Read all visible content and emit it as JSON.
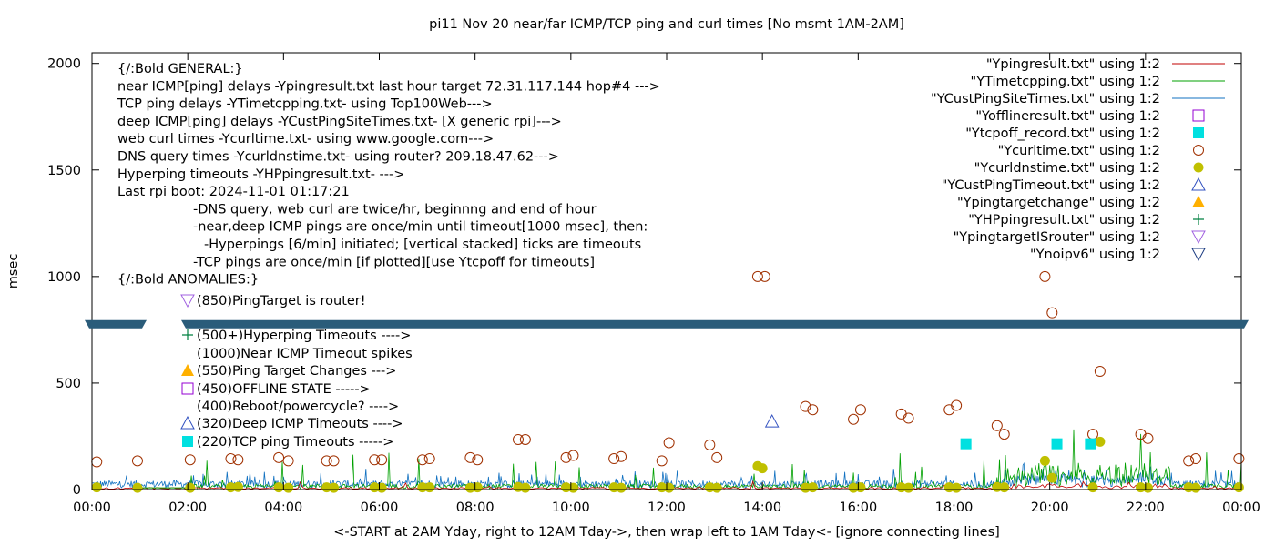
{
  "chart_data": {
    "type": "scatter",
    "title": "pi11 Nov 20  near/far ICMP/TCP ping and curl times [No msmt 1AM-2AM]",
    "xlabel": "<-START at 2AM Yday, right to 12AM Tday->, then wrap left to 1AM Tday<- [ignore connecting lines]",
    "ylabel": "msec",
    "xlim": [
      0,
      24
    ],
    "ylim": [
      0,
      2050
    ],
    "y_axis_break": [
      770,
      790
    ],
    "x_ticks": [
      "00:00",
      "02:00",
      "04:00",
      "06:00",
      "08:00",
      "10:00",
      "12:00",
      "14:00",
      "16:00",
      "18:00",
      "20:00",
      "22:00",
      "00:00"
    ],
    "y_ticks": [
      "0",
      "500",
      "1000",
      "1500",
      "2000"
    ],
    "grid": false,
    "legend_position": "top-right",
    "legend": [
      {
        "label": "\"Ypingresult.txt\" using 1:2",
        "symbol": "line",
        "color": "#c00000"
      },
      {
        "label": "\"YTimetcpping.txt\" using 1:2",
        "symbol": "line",
        "color": "#00a000"
      },
      {
        "label": "\"YCustPingSiteTimes.txt\" using 1:2",
        "symbol": "line",
        "color": "#1070c0"
      },
      {
        "label": "\"Yofflineresult.txt\" using 1:2",
        "symbol": "open-square",
        "color": "#9400d3"
      },
      {
        "label": "\"Ytcpoff_record.txt\" using 1:2",
        "symbol": "filled-square",
        "color": "#00e0e0"
      },
      {
        "label": "\"Ycurltime.txt\" using 1:2",
        "symbol": "open-circle",
        "color": "#a03000"
      },
      {
        "label": "\"Ycurldnstime.txt\" using 1:2",
        "symbol": "filled-circle",
        "color": "#c0c000"
      },
      {
        "label": "\"YCustPingTimeout.txt\" using 1:2",
        "symbol": "open-triangle-up",
        "color": "#3050c0"
      },
      {
        "label": "\"Ypingtargetchange\" using 1:2",
        "symbol": "filled-triangle-up",
        "color": "#ffb000"
      },
      {
        "label": "\"YHPpingresult.txt\" using 1:2",
        "symbol": "plus",
        "color": "#008040"
      },
      {
        "label": "\"YpingtargetISrouter\" using 1:2",
        "symbol": "open-triangle-down",
        "color": "#a060e0"
      },
      {
        "label": "\"Ynoipv6\" using 1:2",
        "symbol": "open-triangle-down",
        "color": "#1a3a80"
      }
    ],
    "annotations_top": [
      "{/:Bold GENERAL:}",
      "near ICMP[ping] delays -Ypingresult.txt last hour target 72.31.117.144 hop#4 --->",
      "TCP ping delays -YTimetcpping.txt- using Top100Web--->",
      "deep ICMP[ping] delays -YCustPingSiteTimes.txt- [X generic rpi]--->",
      "web curl times -Ycurltime.txt- using www.google.com--->",
      "DNS query times -Ycurldnstime.txt- using router? 209.18.47.62--->",
      "Hyperping timeouts -YHPpingresult.txt- --->",
      "Last rpi boot: 2024-11-01 01:17:21",
      "-DNS query, web curl are twice/hr, beginnng and end of hour",
      "-near,deep ICMP pings are once/min until timeout[1000 msec], then:",
      "-Hyperpings [6/min] initiated; [vertical stacked] ticks are timeouts",
      "-TCP pings are once/min [if plotted][use Ytcpoff for timeouts]",
      "{/:Bold ANOMALIES:}"
    ],
    "anomalies": [
      {
        "text": "(850)PingTarget is router!",
        "symbol": "open-triangle-down",
        "color": "#a060e0"
      },
      {
        "text": "(500+)Hyperping Timeouts ---->",
        "symbol": "plus",
        "color": "#008040"
      },
      {
        "text": "(1000)Near ICMP Timeout spikes",
        "symbol": "none",
        "color": ""
      },
      {
        "text": "(550)Ping Target Changes --->",
        "symbol": "filled-triangle-up",
        "color": "#ffb000"
      },
      {
        "text": "(450)OFFLINE STATE ----->",
        "symbol": "open-square",
        "color": "#9400d3"
      },
      {
        "text": "(400)Reboot/powercycle? ---->",
        "symbol": "none",
        "color": ""
      },
      {
        "text": "(320)Deep ICMP Timeouts ---->",
        "symbol": "open-triangle-up",
        "color": "#3050c0"
      },
      {
        "text": "(220)TCP ping Timeouts ----->",
        "symbol": "filled-square",
        "color": "#00e0e0"
      }
    ],
    "series": [
      {
        "name": "\"Ycurltime.txt\" using 1:2",
        "x": [
          0.1,
          0.95,
          2.05,
          2.9,
          3.05,
          3.9,
          4.1,
          4.9,
          5.05,
          5.9,
          6.05,
          6.9,
          7.05,
          7.9,
          8.05,
          8.9,
          9.05,
          9.9,
          10.05,
          10.9,
          11.05,
          11.9,
          12.05,
          12.9,
          13.05,
          13.9,
          14.05,
          14.9,
          15.05,
          15.9,
          16.05,
          16.9,
          17.05,
          17.9,
          18.05,
          18.9,
          19.05,
          19.9,
          20.05,
          20.9,
          21.05,
          21.9,
          22.05,
          22.9,
          23.05,
          23.95
        ],
        "y": [
          130,
          135,
          140,
          145,
          140,
          150,
          135,
          135,
          135,
          140,
          140,
          140,
          145,
          150,
          140,
          235,
          235,
          150,
          160,
          145,
          155,
          135,
          220,
          210,
          150,
          1000,
          1000,
          390,
          375,
          330,
          375,
          355,
          335,
          375,
          395,
          300,
          260,
          1000,
          830,
          260,
          555,
          260,
          240,
          135,
          145,
          145
        ]
      },
      {
        "name": "\"Ycurldnstime.txt\" using 1:2",
        "x": [
          0.1,
          0.95,
          2.05,
          2.9,
          3.05,
          3.9,
          4.1,
          4.9,
          5.05,
          5.9,
          6.05,
          6.9,
          7.05,
          7.9,
          8.05,
          8.9,
          9.05,
          9.9,
          10.05,
          10.9,
          11.05,
          11.9,
          12.05,
          12.9,
          13.05,
          13.9,
          14.0,
          14.9,
          15.05,
          15.9,
          16.05,
          16.9,
          17.05,
          17.9,
          18.05,
          18.9,
          19.05,
          19.9,
          20.05,
          20.9,
          21.05,
          21.9,
          22.05,
          22.9,
          23.05,
          23.95
        ],
        "y": [
          10,
          8,
          8,
          10,
          12,
          10,
          8,
          10,
          8,
          10,
          8,
          10,
          10,
          8,
          10,
          12,
          8,
          10,
          8,
          10,
          8,
          10,
          8,
          10,
          8,
          110,
          100,
          8,
          10,
          8,
          10,
          10,
          8,
          10,
          8,
          12,
          10,
          135,
          55,
          10,
          225,
          10,
          8,
          10,
          8,
          10
        ]
      },
      {
        "name": "\"Ytcpoff_record.txt\" using 1:2",
        "x": [
          18.25,
          20.15,
          20.85
        ],
        "y": [
          215,
          215,
          215
        ]
      },
      {
        "name": "\"YCustPingTimeout.txt\" using 1:2",
        "x": [
          14.2
        ],
        "y": [
          320
        ]
      }
    ]
  }
}
